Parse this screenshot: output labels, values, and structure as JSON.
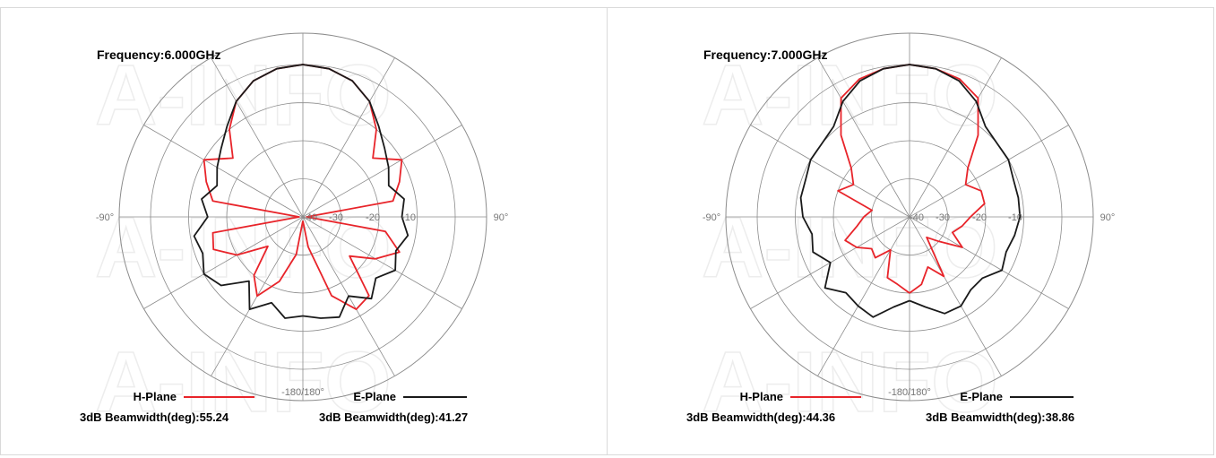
{
  "watermark": "A-INFO",
  "colors": {
    "h_plane": "#e8242a",
    "e_plane": "#1a1a1a",
    "grid": "#8c8c8c"
  },
  "chart_data": [
    {
      "type": "polar",
      "title": "Frequency:6.000GHz",
      "radial_unit": "dB",
      "radial_ticks": [
        "-40",
        "-30",
        "-20",
        "-10"
      ],
      "angle_ticks": [
        "-90°",
        "90°",
        "-180/180°"
      ],
      "rlim": [
        -40,
        0
      ],
      "series": [
        {
          "name": "H-Plane",
          "beamwidth_label": "3dB Beamwidth(deg):55.24",
          "angles": [
            -180,
            -170,
            -160,
            -150,
            -140,
            -130,
            -120,
            -110,
            -100,
            -90,
            -80,
            -70,
            -60,
            -50,
            -40,
            -30,
            -20,
            -10,
            0,
            10,
            20,
            30,
            40,
            50,
            60,
            70,
            80,
            90,
            100,
            110,
            120,
            130,
            140,
            150,
            160,
            170,
            180
          ],
          "values": [
            -39,
            -30,
            -22,
            -16,
            -20,
            -28,
            -20,
            -15,
            -16,
            -39,
            -16,
            -13,
            -10,
            -16,
            -10,
            -5,
            -2,
            -0.5,
            0,
            -0.5,
            -2,
            -5,
            -10,
            -16,
            -10,
            -13,
            -16,
            -39,
            -18,
            -13,
            -18,
            -24,
            -13,
            -12,
            -18,
            -32,
            -39
          ]
        },
        {
          "name": "E-Plane",
          "beamwidth_label": "3dB Beamwidth(deg):41.27",
          "angles": [
            -180,
            -170,
            -160,
            -150,
            -140,
            -130,
            -120,
            -110,
            -100,
            -90,
            -80,
            -70,
            -60,
            -50,
            -40,
            -30,
            -20,
            -10,
            0,
            10,
            20,
            30,
            40,
            50,
            60,
            70,
            80,
            90,
            100,
            110,
            120,
            130,
            140,
            150,
            160,
            170,
            180
          ],
          "values": [
            -14,
            -13,
            -16,
            -12,
            -18,
            -12,
            -10,
            -12,
            -11,
            -15,
            -13,
            -16,
            -14,
            -12,
            -9,
            -5,
            -2,
            -0.5,
            0,
            -0.5,
            -2,
            -5,
            -9,
            -12,
            -14,
            -16,
            -13,
            -14,
            -12,
            -14,
            -12,
            -15,
            -12,
            -16,
            -12,
            -13,
            -14
          ]
        }
      ]
    },
    {
      "type": "polar",
      "title": "Frequency:7.000GHz",
      "radial_unit": "dB",
      "radial_ticks": [
        "-40",
        "-30",
        "-20",
        "-10"
      ],
      "angle_ticks": [
        "-90°",
        "90°",
        "-180/180°"
      ],
      "rlim": [
        -40,
        0
      ],
      "series": [
        {
          "name": "H-Plane",
          "beamwidth_label": "3dB Beamwidth(deg):44.36",
          "angles": [
            -180,
            -170,
            -160,
            -150,
            -140,
            -130,
            -120,
            -110,
            -100,
            -90,
            -80,
            -70,
            -60,
            -50,
            -40,
            -30,
            -20,
            -10,
            0,
            10,
            20,
            30,
            40,
            50,
            60,
            70,
            80,
            90,
            100,
            110,
            120,
            130,
            140,
            150,
            160,
            170,
            180
          ],
          "values": [
            -20,
            -22,
            -23,
            -30,
            -26,
            -27,
            -24,
            -22,
            -26,
            -28,
            -30,
            -20,
            -23,
            -20,
            -12,
            -4,
            -1.5,
            -0.5,
            0,
            -0.5,
            -1.5,
            -4,
            -12,
            -20,
            -23,
            -20,
            -20,
            -24,
            -26,
            -28,
            -24,
            -30,
            -33,
            -22,
            -26,
            -22,
            -20
          ]
        },
        {
          "name": "E-Plane",
          "beamwidth_label": "3dB Beamwidth(deg):38.86",
          "angles": [
            -180,
            -170,
            -160,
            -150,
            -140,
            -130,
            -120,
            -110,
            -100,
            -90,
            -80,
            -70,
            -60,
            -50,
            -40,
            -30,
            -20,
            -10,
            0,
            10,
            20,
            30,
            40,
            50,
            60,
            70,
            80,
            90,
            100,
            110,
            120,
            130,
            140,
            150,
            160,
            170,
            180
          ],
          "values": [
            -18,
            -16,
            -12,
            -13,
            -14,
            -11,
            -16,
            -13,
            -14,
            -12,
            -11,
            -11,
            -10,
            -10,
            -9,
            -5,
            -2,
            -0.5,
            0,
            -0.5,
            -2,
            -5,
            -9,
            -10,
            -10,
            -11,
            -11,
            -11,
            -12,
            -13,
            -12,
            -15,
            -15,
            -13,
            -13,
            -16,
            -18
          ]
        }
      ]
    }
  ]
}
